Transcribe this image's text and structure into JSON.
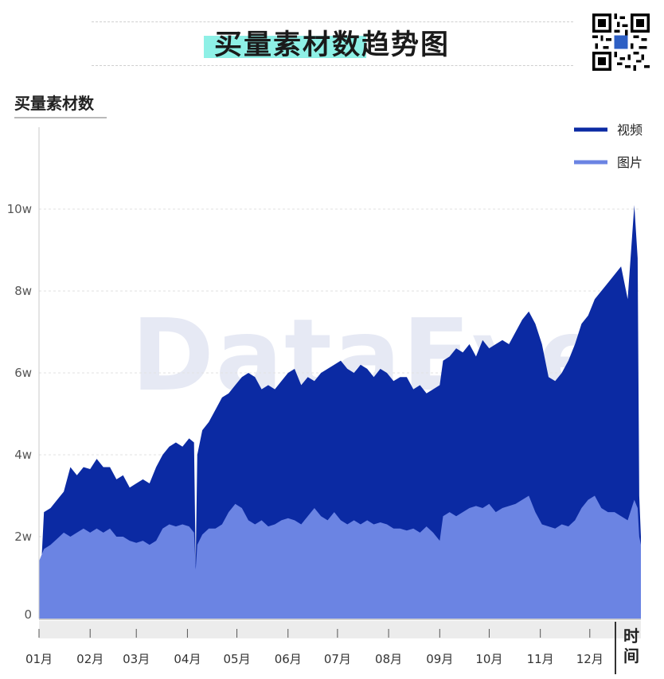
{
  "header": {
    "title": "买量素材数趋势图"
  },
  "watermark": "DataEye",
  "colors": {
    "video": "#0b2aa3",
    "image": "#6b84e3",
    "grid": "#e2e2e2",
    "title_highlight": "#8ef0e6"
  },
  "chart_data": {
    "type": "area",
    "stacked": true,
    "title": "买量素材数趋势图",
    "ylabel": "买量素材数",
    "xlabel": "时间",
    "x_range": [
      1,
      366
    ],
    "x_ticks": [
      {
        "day": 1,
        "label": "01月"
      },
      {
        "day": 32,
        "label": "02月"
      },
      {
        "day": 60,
        "label": "03月"
      },
      {
        "day": 91,
        "label": "04月"
      },
      {
        "day": 121,
        "label": "05月"
      },
      {
        "day": 152,
        "label": "06月"
      },
      {
        "day": 182,
        "label": "07月"
      },
      {
        "day": 213,
        "label": "08月"
      },
      {
        "day": 244,
        "label": "09月"
      },
      {
        "day": 274,
        "label": "10月"
      },
      {
        "day": 305,
        "label": "11月"
      },
      {
        "day": 335,
        "label": "12月"
      }
    ],
    "ylim": [
      0,
      120000
    ],
    "y_ticks": [
      {
        "value": 0,
        "label": "0"
      },
      {
        "value": 20000,
        "label": "2w"
      },
      {
        "value": 40000,
        "label": "4w"
      },
      {
        "value": 60000,
        "label": "6w"
      },
      {
        "value": 80000,
        "label": "8w"
      },
      {
        "value": 100000,
        "label": "10w"
      }
    ],
    "grid": true,
    "legend_position": "top-right",
    "series": [
      {
        "name": "视频",
        "points": [
          [
            1,
            2000
          ],
          [
            4,
            26000
          ],
          [
            8,
            27000
          ],
          [
            12,
            29000
          ],
          [
            16,
            31000
          ],
          [
            20,
            37000
          ],
          [
            24,
            35000
          ],
          [
            28,
            37000
          ],
          [
            32,
            36500
          ],
          [
            36,
            39000
          ],
          [
            40,
            37000
          ],
          [
            44,
            37000
          ],
          [
            48,
            34000
          ],
          [
            52,
            35000
          ],
          [
            56,
            32000
          ],
          [
            60,
            33000
          ],
          [
            64,
            34000
          ],
          [
            68,
            33000
          ],
          [
            72,
            37000
          ],
          [
            76,
            40000
          ],
          [
            80,
            42000
          ],
          [
            84,
            43000
          ],
          [
            88,
            42000
          ],
          [
            92,
            44000
          ],
          [
            95,
            43000
          ],
          [
            96,
            13000
          ],
          [
            97,
            40000
          ],
          [
            100,
            46000
          ],
          [
            104,
            48000
          ],
          [
            108,
            51000
          ],
          [
            112,
            54000
          ],
          [
            116,
            55000
          ],
          [
            120,
            57000
          ],
          [
            124,
            59000
          ],
          [
            128,
            60000
          ],
          [
            132,
            59000
          ],
          [
            136,
            56000
          ],
          [
            140,
            57000
          ],
          [
            144,
            56000
          ],
          [
            148,
            58000
          ],
          [
            152,
            60000
          ],
          [
            156,
            61000
          ],
          [
            160,
            57000
          ],
          [
            164,
            59000
          ],
          [
            168,
            58000
          ],
          [
            172,
            60000
          ],
          [
            176,
            61000
          ],
          [
            180,
            62000
          ],
          [
            184,
            63000
          ],
          [
            188,
            61000
          ],
          [
            192,
            60000
          ],
          [
            196,
            62000
          ],
          [
            200,
            61000
          ],
          [
            204,
            59000
          ],
          [
            208,
            61000
          ],
          [
            212,
            60000
          ],
          [
            216,
            58000
          ],
          [
            220,
            59000
          ],
          [
            224,
            59000
          ],
          [
            228,
            56000
          ],
          [
            232,
            57000
          ],
          [
            236,
            55000
          ],
          [
            240,
            56000
          ],
          [
            244,
            57000
          ],
          [
            246,
            63000
          ],
          [
            250,
            64000
          ],
          [
            254,
            66000
          ],
          [
            258,
            65000
          ],
          [
            262,
            67000
          ],
          [
            266,
            64000
          ],
          [
            270,
            68000
          ],
          [
            274,
            66000
          ],
          [
            278,
            67000
          ],
          [
            282,
            68000
          ],
          [
            286,
            67000
          ],
          [
            290,
            70000
          ],
          [
            294,
            73000
          ],
          [
            298,
            75000
          ],
          [
            302,
            72000
          ],
          [
            306,
            67000
          ],
          [
            310,
            59000
          ],
          [
            314,
            58000
          ],
          [
            318,
            60000
          ],
          [
            322,
            63000
          ],
          [
            326,
            67000
          ],
          [
            330,
            72000
          ],
          [
            334,
            74000
          ],
          [
            338,
            78000
          ],
          [
            342,
            80000
          ],
          [
            346,
            82000
          ],
          [
            350,
            84000
          ],
          [
            354,
            86000
          ],
          [
            358,
            78000
          ],
          [
            362,
            101000
          ],
          [
            364,
            88000
          ],
          [
            365,
            30000
          ],
          [
            366,
            20000
          ]
        ]
      },
      {
        "name": "图片",
        "points": [
          [
            1,
            14000
          ],
          [
            4,
            17000
          ],
          [
            8,
            18000
          ],
          [
            12,
            19500
          ],
          [
            16,
            21000
          ],
          [
            20,
            20000
          ],
          [
            24,
            21000
          ],
          [
            28,
            22000
          ],
          [
            32,
            21000
          ],
          [
            36,
            22000
          ],
          [
            40,
            21000
          ],
          [
            44,
            22000
          ],
          [
            48,
            20000
          ],
          [
            52,
            20000
          ],
          [
            56,
            19000
          ],
          [
            60,
            18500
          ],
          [
            64,
            19000
          ],
          [
            68,
            18000
          ],
          [
            72,
            19000
          ],
          [
            76,
            22000
          ],
          [
            80,
            23000
          ],
          [
            84,
            22500
          ],
          [
            88,
            23000
          ],
          [
            92,
            22500
          ],
          [
            95,
            21000
          ],
          [
            96,
            12000
          ],
          [
            97,
            18000
          ],
          [
            100,
            20500
          ],
          [
            104,
            22000
          ],
          [
            108,
            22000
          ],
          [
            112,
            23000
          ],
          [
            116,
            26000
          ],
          [
            120,
            28000
          ],
          [
            124,
            27000
          ],
          [
            128,
            24000
          ],
          [
            132,
            23000
          ],
          [
            136,
            24000
          ],
          [
            140,
            22500
          ],
          [
            144,
            23000
          ],
          [
            148,
            24000
          ],
          [
            152,
            24500
          ],
          [
            156,
            24000
          ],
          [
            160,
            23000
          ],
          [
            164,
            25000
          ],
          [
            168,
            27000
          ],
          [
            172,
            25000
          ],
          [
            176,
            24000
          ],
          [
            180,
            26000
          ],
          [
            184,
            24000
          ],
          [
            188,
            23000
          ],
          [
            192,
            24000
          ],
          [
            196,
            23000
          ],
          [
            200,
            24000
          ],
          [
            204,
            23000
          ],
          [
            208,
            23500
          ],
          [
            212,
            23000
          ],
          [
            216,
            22000
          ],
          [
            220,
            22000
          ],
          [
            224,
            21500
          ],
          [
            228,
            22000
          ],
          [
            232,
            21000
          ],
          [
            236,
            22500
          ],
          [
            240,
            21000
          ],
          [
            244,
            19000
          ],
          [
            246,
            25000
          ],
          [
            250,
            26000
          ],
          [
            254,
            25000
          ],
          [
            258,
            26000
          ],
          [
            262,
            27000
          ],
          [
            266,
            27500
          ],
          [
            270,
            27000
          ],
          [
            274,
            28000
          ],
          [
            278,
            26000
          ],
          [
            282,
            27000
          ],
          [
            286,
            27500
          ],
          [
            290,
            28000
          ],
          [
            294,
            29000
          ],
          [
            298,
            30000
          ],
          [
            302,
            26000
          ],
          [
            306,
            23000
          ],
          [
            310,
            22500
          ],
          [
            314,
            22000
          ],
          [
            318,
            23000
          ],
          [
            322,
            22500
          ],
          [
            326,
            24000
          ],
          [
            330,
            27000
          ],
          [
            334,
            29000
          ],
          [
            338,
            30000
          ],
          [
            342,
            27000
          ],
          [
            346,
            26000
          ],
          [
            350,
            26000
          ],
          [
            354,
            25000
          ],
          [
            358,
            24000
          ],
          [
            362,
            29000
          ],
          [
            364,
            27000
          ],
          [
            365,
            20000
          ],
          [
            366,
            18000
          ]
        ]
      }
    ]
  }
}
